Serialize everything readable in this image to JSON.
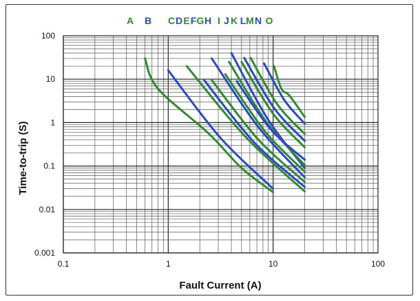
{
  "chart_data": {
    "type": "line",
    "xlabel": "Fault Current (A)",
    "ylabel": "Time-to-trip (S)",
    "xscale": "log",
    "yscale": "log",
    "xlim": [
      0.1,
      100
    ],
    "ylim": [
      0.001,
      100
    ],
    "grid": true,
    "x_ticks": [
      "0.1",
      "1",
      "10",
      "100"
    ],
    "y_ticks": [
      "100",
      "10",
      "1",
      "0.1",
      "0.01",
      "0.001"
    ],
    "legend_placement": "top",
    "colors": {
      "green": "#2e8b2e",
      "blue": "#2a48c8"
    },
    "series": [
      {
        "name": "A",
        "color": "#2e8b2e",
        "points": [
          [
            0.6,
            30
          ],
          [
            0.8,
            6
          ],
          [
            2.45,
            0.55
          ],
          [
            5,
            0.09
          ],
          [
            10,
            0.025
          ]
        ]
      },
      {
        "name": "B",
        "color": "#2a48c8",
        "points": [
          [
            1,
            16
          ],
          [
            3.16,
            0.44
          ],
          [
            10,
            0.03
          ]
        ]
      },
      {
        "name": "C",
        "color": "#2e8b2e",
        "points": [
          [
            1.5,
            20
          ],
          [
            5.5,
            0.46
          ],
          [
            20,
            0.026
          ]
        ]
      },
      {
        "name": "D",
        "color": "#2a48c8",
        "points": [
          [
            2.2,
            9.5
          ],
          [
            6.6,
            0.35
          ],
          [
            20,
            0.033
          ]
        ]
      },
      {
        "name": "E",
        "color": "#2e8b2e",
        "points": [
          [
            2.6,
            9.5
          ],
          [
            7.2,
            0.41
          ],
          [
            20,
            0.043
          ]
        ]
      },
      {
        "name": "F",
        "color": "#2a48c8",
        "points": [
          [
            2.6,
            30
          ],
          [
            7.2,
            0.8
          ],
          [
            20,
            0.055
          ]
        ]
      },
      {
        "name": "G",
        "color": "#2e8b2e",
        "points": [
          [
            3.5,
            13
          ],
          [
            8.4,
            0.62
          ],
          [
            20,
            0.074
          ]
        ]
      },
      {
        "name": "H",
        "color": "#2a48c8",
        "points": [
          [
            4,
            40
          ],
          [
            8.9,
            1.2
          ],
          [
            20,
            0.09
          ]
        ]
      },
      {
        "name": "I",
        "color": "#2e8b2e",
        "points": [
          [
            3.8,
            25
          ],
          [
            8.7,
            1.0
          ],
          [
            20,
            0.105
          ]
        ]
      },
      {
        "name": "J",
        "color": "#2a48c8",
        "points": [
          [
            4.5,
            9
          ],
          [
            9.5,
            0.7
          ],
          [
            20,
            0.14
          ]
        ]
      },
      {
        "name": "K",
        "color": "#2e8b2e",
        "points": [
          [
            5,
            25
          ],
          [
            10,
            1.6
          ],
          [
            20,
            0.27
          ]
        ]
      },
      {
        "name": "L",
        "color": "#2a48c8",
        "points": [
          [
            5.3,
            31
          ],
          [
            10.3,
            2.1
          ],
          [
            20,
            0.38
          ]
        ]
      },
      {
        "name": "M",
        "color": "#2e8b2e",
        "points": [
          [
            6.1,
            31
          ],
          [
            11,
            2.6
          ],
          [
            20,
            0.55
          ]
        ]
      },
      {
        "name": "N",
        "color": "#2a48c8",
        "points": [
          [
            8.2,
            23
          ],
          [
            12.8,
            3.3
          ],
          [
            20,
            0.95
          ]
        ]
      },
      {
        "name": "O",
        "color": "#2e8b2e",
        "points": [
          [
            10.2,
            20
          ],
          [
            12,
            6
          ],
          [
            14.3,
            4.2
          ],
          [
            20,
            1.35
          ]
        ]
      }
    ]
  }
}
